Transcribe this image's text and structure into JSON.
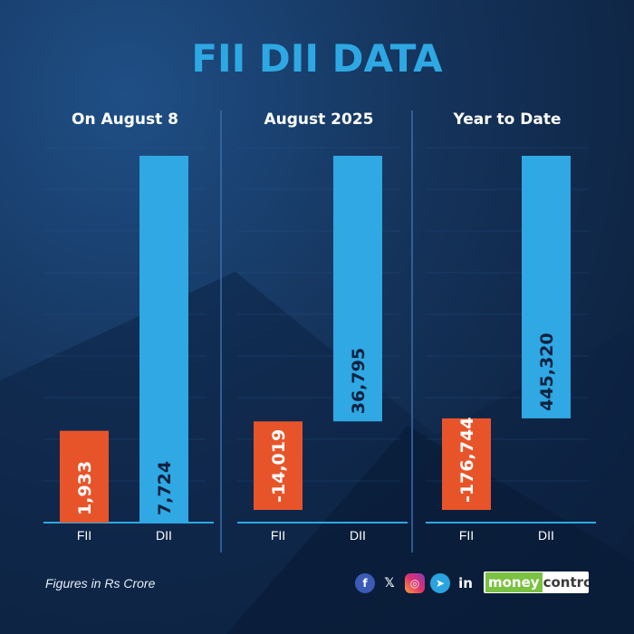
{
  "title": "FII DII DATA",
  "footer": {
    "note": "Figures in Rs Crore",
    "brand_part1": "money",
    "brand_part2": "control",
    "social_icons": [
      "facebook-icon",
      "x-icon",
      "instagram-icon",
      "telegram-icon",
      "linkedin-icon"
    ]
  },
  "colors": {
    "fii": "#e8542a",
    "dii": "#2fa8e3",
    "title": "#2ea8e3",
    "divider": "#3a6fa8"
  },
  "chart_data": [
    {
      "type": "bar",
      "title": "On August 8",
      "categories": [
        "FII",
        "DII"
      ],
      "values": [
        1933,
        7724
      ],
      "value_labels": [
        "1,933",
        "7,724"
      ],
      "ylim": [
        0,
        7724
      ]
    },
    {
      "type": "bar",
      "title": "August 2025",
      "categories": [
        "FII",
        "DII"
      ],
      "values": [
        -14019,
        36795
      ],
      "value_labels": [
        "-14,019",
        "36,795"
      ],
      "ylim": [
        -14019,
        36795
      ]
    },
    {
      "type": "bar",
      "title": "Year to Date",
      "categories": [
        "FII",
        "DII"
      ],
      "values": [
        -176744,
        445320
      ],
      "value_labels": [
        "-176,744",
        "445,320"
      ],
      "ylim": [
        -176744,
        445320
      ]
    }
  ]
}
